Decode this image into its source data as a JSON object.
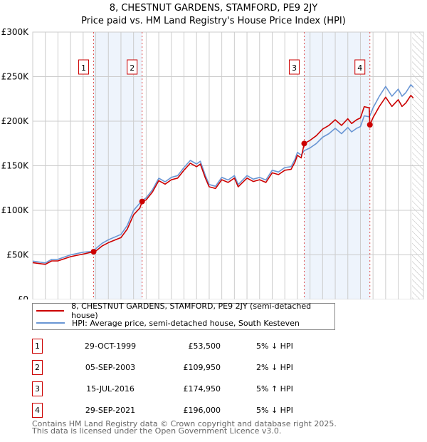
{
  "title": "8, CHESTNUT GARDENS, STAMFORD, PE9 2JY",
  "subtitle": "Price paid vs. HM Land Registry's House Price Index (HPI)",
  "colors": {
    "property": "#cc0000",
    "hpi": "#6a96d4",
    "shade": "#eef4fc",
    "grid": "#cccccc"
  },
  "chart_data": {
    "type": "line",
    "xlim": [
      1995,
      2026
    ],
    "ylim": [
      0,
      300000
    ],
    "x_ticks": [
      "1995",
      "1996",
      "1997",
      "1998",
      "1999",
      "2000",
      "2001",
      "2002",
      "2003",
      "2004",
      "2005",
      "2006",
      "2007",
      "2008",
      "2009",
      "2010",
      "2011",
      "2012",
      "2013",
      "2014",
      "2015",
      "2016",
      "2017",
      "2018",
      "2019",
      "2020",
      "2021",
      "2022",
      "2023",
      "2024",
      "2025",
      "2026"
    ],
    "y_ticks": [
      {
        "v": 0,
        "label": "£0"
      },
      {
        "v": 50000,
        "label": "£50K"
      },
      {
        "v": 100000,
        "label": "£100K"
      },
      {
        "v": 150000,
        "label": "£150K"
      },
      {
        "v": 200000,
        "label": "£200K"
      },
      {
        "v": 250000,
        "label": "£250K"
      },
      {
        "v": 300000,
        "label": "£300K"
      }
    ],
    "forecast_hatch_from": 2025.1,
    "series": [
      {
        "name": "8, CHESTNUT GARDENS, STAMFORD, PE9 2JY (semi-detached house)",
        "color": "#cc0000",
        "x": [
          1995,
          1996,
          1996.5,
          1997,
          1998,
          1999,
          1999.83,
          2000,
          2000.5,
          2001,
          2002,
          2002.5,
          2003,
          2003.5,
          2003.68,
          2004,
          2004.5,
          2005,
          2005.5,
          2006,
          2006.5,
          2007,
          2007.5,
          2008,
          2008.3,
          2008.7,
          2009,
          2009.5,
          2010,
          2010.5,
          2011,
          2011.3,
          2012,
          2012.5,
          2013,
          2013.5,
          2014,
          2014.5,
          2015,
          2015.5,
          2015.8,
          2016,
          2016.3,
          2016.54,
          2017,
          2017.5,
          2018,
          2018.5,
          2019,
          2019.5,
          2020,
          2020.3,
          2020.7,
          2021,
          2021.3,
          2021.7,
          2021.75,
          2022,
          2022.5,
          2023,
          2023.5,
          2024,
          2024.3,
          2024.6,
          2025,
          2025.2
        ],
        "y": [
          41300,
          39400,
          43200,
          43200,
          48000,
          50900,
          53500,
          54200,
          59900,
          63700,
          69400,
          78900,
          95000,
          102600,
          109950,
          111700,
          120500,
          133300,
          129400,
          134300,
          136200,
          145000,
          152900,
          149000,
          151900,
          136200,
          126400,
          124500,
          134300,
          131300,
          136200,
          126400,
          136200,
          132300,
          134300,
          131300,
          142100,
          140100,
          145000,
          146000,
          153900,
          161700,
          158800,
          174950,
          178500,
          183800,
          191100,
          195300,
          201600,
          195300,
          202700,
          197400,
          201600,
          203700,
          216300,
          215000,
          196000,
          204000,
          216600,
          227000,
          216600,
          224200,
          216600,
          220400,
          229000,
          226000
        ]
      },
      {
        "name": "HPI: Average price, semi-detached house, South Kesteven",
        "color": "#6a96d4",
        "x": [
          1995,
          1996,
          1996.5,
          1997,
          1998,
          1999,
          1999.83,
          2000,
          2000.5,
          2001,
          2002,
          2002.5,
          2003,
          2003.5,
          2003.68,
          2004,
          2004.5,
          2005,
          2005.5,
          2006,
          2006.5,
          2007,
          2007.5,
          2008,
          2008.3,
          2008.7,
          2009,
          2009.5,
          2010,
          2010.5,
          2011,
          2011.3,
          2012,
          2012.5,
          2013,
          2013.5,
          2014,
          2014.5,
          2015,
          2015.5,
          2015.8,
          2016,
          2016.3,
          2016.54,
          2017,
          2017.5,
          2018,
          2018.5,
          2019,
          2019.5,
          2020,
          2020.3,
          2020.7,
          2021,
          2021.3,
          2021.7,
          2021.75,
          2022,
          2022.5,
          2023,
          2023.5,
          2024,
          2024.3,
          2024.6,
          2025,
          2025.2
        ],
        "y": [
          43000,
          41000,
          45000,
          45000,
          50000,
          53000,
          54000,
          57000,
          63000,
          67000,
          73000,
          83000,
          100000,
          108000,
          111000,
          114000,
          123000,
          136000,
          132000,
          137000,
          139000,
          148000,
          156000,
          152000,
          155000,
          139000,
          129000,
          127000,
          137000,
          134000,
          139000,
          129000,
          139000,
          135000,
          137000,
          134000,
          145000,
          143000,
          148000,
          149000,
          157000,
          165000,
          162000,
          167000,
          170000,
          175000,
          182000,
          186000,
          192000,
          186000,
          193000,
          188000,
          192000,
          194000,
          206000,
          205000,
          206000,
          215000,
          228000,
          239000,
          228000,
          236000,
          228000,
          232000,
          241000,
          238000
        ]
      }
    ],
    "sales": [
      {
        "n": "1",
        "x": 1999.83,
        "price": 53500
      },
      {
        "n": "2",
        "x": 2003.68,
        "price": 109950
      },
      {
        "n": "3",
        "x": 2016.54,
        "price": 174950
      },
      {
        "n": "4",
        "x": 2021.75,
        "price": 196000
      }
    ],
    "shaded_ranges": [
      [
        1999.83,
        2003.68
      ],
      [
        2016.54,
        2021.75
      ]
    ]
  },
  "legend": {
    "property": "8, CHESTNUT GARDENS, STAMFORD, PE9 2JY (semi-detached house)",
    "hpi": "HPI: Average price, semi-detached house, South Kesteven"
  },
  "transactions": [
    {
      "n": "1",
      "date": "29-OCT-1999",
      "price": "£53,500",
      "hpi": "5% ↓ HPI"
    },
    {
      "n": "2",
      "date": "05-SEP-2003",
      "price": "£109,950",
      "hpi": "2% ↓ HPI"
    },
    {
      "n": "3",
      "date": "15-JUL-2016",
      "price": "£174,950",
      "hpi": "5% ↑ HPI"
    },
    {
      "n": "4",
      "date": "29-SEP-2021",
      "price": "£196,000",
      "hpi": "5% ↓ HPI"
    }
  ],
  "footer": {
    "line1": "Contains HM Land Registry data © Crown copyright and database right 2025.",
    "line2": "This data is licensed under the Open Government Licence v3.0."
  }
}
